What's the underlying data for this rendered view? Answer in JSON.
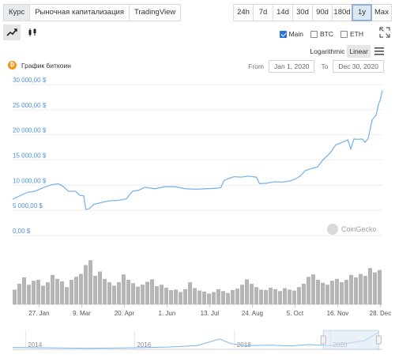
{
  "tabs": [
    "Курс",
    "Рыночная капитализация",
    "TradingView"
  ],
  "active_tab": 0,
  "ranges": [
    "24h",
    "7d",
    "14d",
    "30d",
    "90d",
    "180d",
    "1y",
    "Max"
  ],
  "active_range": 6,
  "chart_types": [
    "line-chart-icon",
    "candlestick-icon"
  ],
  "checkboxes": [
    {
      "label": "Main",
      "checked": true
    },
    {
      "label": "BTC",
      "checked": false
    },
    {
      "label": "ETH",
      "checked": false
    }
  ],
  "scale": {
    "logarithmic": "Logarithmic",
    "linear": "Linear",
    "active": "Linear"
  },
  "title": "График биткоин",
  "date_from_label": "From",
  "date_from": "Jan 1, 2020",
  "date_to_label": "To",
  "date_to": "Dec 30, 2020",
  "watermark": "CoinGecko",
  "colors": {
    "line": "#7cb5ec",
    "axis_text": "#4a90e2",
    "volume": "#b5b5b5",
    "navigator_fill": "#dbe6f3",
    "bitcoin": "#f7931a"
  },
  "chart_data": {
    "type": "line",
    "y_ticks": [
      "0,00 $",
      "5 000,00 $",
      "10 000,00 $",
      "15 000,00 $",
      "20 000,00 $",
      "25 000,00 $",
      "30 000,00 $"
    ],
    "y_tick_values": [
      0,
      5000,
      10000,
      15000,
      20000,
      25000,
      30000
    ],
    "ylim": [
      0,
      30000
    ],
    "x_ticks": [
      "27. Jan",
      "9. Mar",
      "20. Apr",
      "1. Jun",
      "13. Jul",
      "24. Aug",
      "5. Oct",
      "16. Nov",
      "28. Dec"
    ],
    "x_tick_days": [
      26,
      68,
      110,
      152,
      194,
      236,
      278,
      320,
      362
    ],
    "xlim_days": [
      0,
      364
    ],
    "x_unit": "day of 2020",
    "series": [
      {
        "points": [
          [
            0,
            7200
          ],
          [
            8,
            8000
          ],
          [
            15,
            8600
          ],
          [
            22,
            8800
          ],
          [
            30,
            9500
          ],
          [
            38,
            10100
          ],
          [
            45,
            10300
          ],
          [
            50,
            9700
          ],
          [
            55,
            8800
          ],
          [
            62,
            8800
          ],
          [
            66,
            8000
          ],
          [
            70,
            7900
          ],
          [
            72,
            5200
          ],
          [
            75,
            5300
          ],
          [
            80,
            6200
          ],
          [
            88,
            6600
          ],
          [
            95,
            6900
          ],
          [
            105,
            7000
          ],
          [
            112,
            7300
          ],
          [
            118,
            8800
          ],
          [
            124,
            9000
          ],
          [
            130,
            9600
          ],
          [
            140,
            9300
          ],
          [
            150,
            9700
          ],
          [
            160,
            9700
          ],
          [
            170,
            9300
          ],
          [
            180,
            9200
          ],
          [
            190,
            9300
          ],
          [
            200,
            9400
          ],
          [
            205,
            9500
          ],
          [
            208,
            10900
          ],
          [
            212,
            11300
          ],
          [
            218,
            11700
          ],
          [
            225,
            11600
          ],
          [
            232,
            11800
          ],
          [
            240,
            11600
          ],
          [
            243,
            10300
          ],
          [
            250,
            10400
          ],
          [
            258,
            10700
          ],
          [
            265,
            10600
          ],
          [
            272,
            10800
          ],
          [
            278,
            11200
          ],
          [
            283,
            11800
          ],
          [
            288,
            12900
          ],
          [
            294,
            13300
          ],
          [
            300,
            13600
          ],
          [
            305,
            14900
          ],
          [
            309,
            15700
          ],
          [
            313,
            16500
          ],
          [
            318,
            18000
          ],
          [
            323,
            18400
          ],
          [
            330,
            19000
          ],
          [
            333,
            17200
          ],
          [
            336,
            19200
          ],
          [
            340,
            19100
          ],
          [
            344,
            19200
          ],
          [
            347,
            18500
          ],
          [
            350,
            19300
          ],
          [
            354,
            23000
          ],
          [
            358,
            24000
          ],
          [
            360,
            26000
          ],
          [
            362,
            27000
          ],
          [
            364,
            28800
          ]
        ]
      }
    ],
    "volume": {
      "relative": [
        0.3,
        0.42,
        0.55,
        0.4,
        0.48,
        0.5,
        0.38,
        0.45,
        0.6,
        0.52,
        0.47,
        0.35,
        0.5,
        0.56,
        0.62,
        0.8,
        0.9,
        0.58,
        0.67,
        0.52,
        0.45,
        0.38,
        0.45,
        0.61,
        0.5,
        0.43,
        0.36,
        0.4,
        0.46,
        0.51,
        0.37,
        0.4,
        0.34,
        0.29,
        0.3,
        0.25,
        0.31,
        0.45,
        0.33,
        0.28,
        0.26,
        0.22,
        0.25,
        0.31,
        0.27,
        0.23,
        0.29,
        0.32,
        0.4,
        0.51,
        0.42,
        0.35,
        0.3,
        0.29,
        0.34,
        0.31,
        0.27,
        0.33,
        0.3,
        0.28,
        0.35,
        0.42,
        0.56,
        0.61,
        0.5,
        0.44,
        0.4,
        0.48,
        0.52,
        0.45,
        0.5,
        0.6,
        0.55,
        0.62,
        0.58,
        0.74,
        0.65,
        0.7
      ]
    },
    "navigator": {
      "x_ticks": [
        "2014",
        "2016",
        "2018",
        "2020"
      ],
      "selection": [
        0.84,
        0.99
      ]
    }
  }
}
